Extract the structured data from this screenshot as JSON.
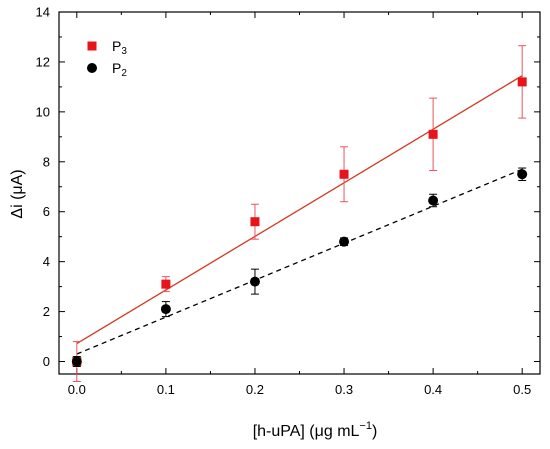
{
  "chart_data": {
    "type": "scatter",
    "xlabel": "[h-uPA] (μg mL",
    "xlabel_sup": "−1",
    "xlabel_end": ")",
    "ylabel": "Δi (μA)",
    "xlim": [
      -0.02,
      0.52
    ],
    "ylim": [
      -0.5,
      14
    ],
    "xticks": [
      0.0,
      0.1,
      0.2,
      0.3,
      0.4,
      0.5
    ],
    "yticks": [
      0,
      2,
      4,
      6,
      8,
      10,
      12,
      14
    ],
    "xtick_labels": [
      "0.0",
      "0.1",
      "0.2",
      "0.3",
      "0.4",
      "0.5"
    ],
    "ytick_labels": [
      "0",
      "2",
      "4",
      "6",
      "8",
      "10",
      "12",
      "14"
    ],
    "legend_position": "top-left",
    "grid": false,
    "series": [
      {
        "name": "P",
        "name_sub": "3",
        "color": "#e8141c",
        "marker": "square",
        "x": [
          0.0,
          0.1,
          0.2,
          0.3,
          0.4,
          0.5
        ],
        "y": [
          0.0,
          3.1,
          5.6,
          7.5,
          9.1,
          11.2
        ],
        "err": [
          0.8,
          0.3,
          0.7,
          1.1,
          1.45,
          1.45
        ],
        "fit": {
          "style": "solid",
          "x": [
            0.0,
            0.5
          ],
          "y": [
            0.72,
            11.45
          ]
        }
      },
      {
        "name": "P",
        "name_sub": "2",
        "color": "#000000",
        "marker": "circle",
        "x": [
          0.0,
          0.1,
          0.2,
          0.3,
          0.4,
          0.5
        ],
        "y": [
          0.0,
          2.1,
          3.2,
          4.8,
          6.45,
          7.5
        ],
        "err": [
          0.2,
          0.3,
          0.5,
          0.15,
          0.25,
          0.25
        ],
        "fit": {
          "style": "dashed",
          "x": [
            0.0,
            0.5
          ],
          "y": [
            0.3,
            7.7
          ]
        }
      }
    ]
  }
}
